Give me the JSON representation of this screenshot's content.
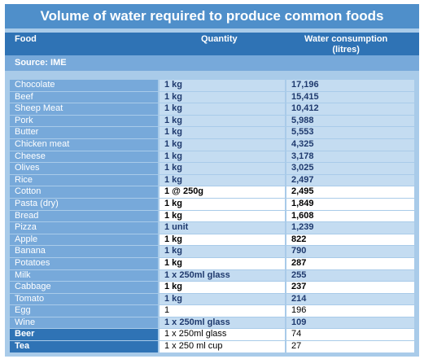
{
  "title": "Volume of water required to produce common foods",
  "header": {
    "food": "Food",
    "quantity": "Quantity",
    "water_line1": "Water consumption",
    "water_line2": "(litres)"
  },
  "source": "Source: IME",
  "rows": [
    {
      "food": "Chocolate",
      "quantity": "1 kg",
      "water": "17,196"
    },
    {
      "food": "Beef",
      "quantity": "1 kg",
      "water": "15,415"
    },
    {
      "food": "Sheep Meat",
      "quantity": "1 kg",
      "water": "10,412"
    },
    {
      "food": "Pork",
      "quantity": "1 kg",
      "water": "5,988"
    },
    {
      "food": "Butter",
      "quantity": "1 kg",
      "water": "5,553"
    },
    {
      "food": "Chicken meat",
      "quantity": "1 kg",
      "water": "4,325"
    },
    {
      "food": "Cheese",
      "quantity": "1 kg",
      "water": "3,178"
    },
    {
      "food": "Olives",
      "quantity": "1 kg",
      "water": "3,025"
    },
    {
      "food": "Rice",
      "quantity": "1 kg",
      "water": "2,497"
    },
    {
      "food": "Cotton",
      "quantity": "1 @ 250g",
      "water": "2,495"
    },
    {
      "food": "Pasta (dry)",
      "quantity": "1 kg",
      "water": "1,849"
    },
    {
      "food": "Bread",
      "quantity": "1 kg",
      "water": "1,608"
    },
    {
      "food": "Pizza",
      "quantity": "1 unit",
      "water": "1,239"
    },
    {
      "food": "Apple",
      "quantity": "1 kg",
      "water": "822"
    },
    {
      "food": "Banana",
      "quantity": "1 kg",
      "water": "790"
    },
    {
      "food": "Potatoes",
      "quantity": "1 kg",
      "water": "287"
    },
    {
      "food": "Milk",
      "quantity": "1 x 250ml glass",
      "water": "255"
    },
    {
      "food": "Cabbage",
      "quantity": "1 kg",
      "water": "237"
    },
    {
      "food": "Tomato",
      "quantity": "1 kg",
      "water": "214"
    },
    {
      "food": "Egg",
      "quantity": "1",
      "water": "196"
    },
    {
      "food": "Wine",
      "quantity": "1 x 250ml glass",
      "water": "109"
    },
    {
      "food": "Beer",
      "quantity": "1 x 250ml glass",
      "water": "74"
    },
    {
      "food": "Tea",
      "quantity": "1 x 250 ml cup",
      "water": "27"
    }
  ],
  "colors": {
    "title_bg": "#4f8fca",
    "header_bg": "#2f73b5",
    "food_cell_bg": "#77a9da",
    "value_cell_bg": "#c4dcf1",
    "value_text": "#1f3a6e"
  }
}
